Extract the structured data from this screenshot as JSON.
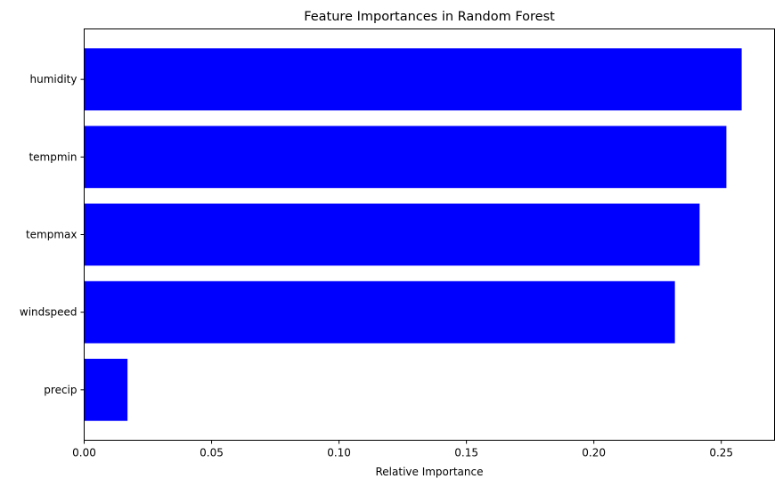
{
  "chart_data": {
    "type": "bar",
    "orientation": "horizontal",
    "title": "Feature Importances in Random Forest",
    "xlabel": "Relative Importance",
    "ylabel": "",
    "categories": [
      "humidity",
      "tempmin",
      "tempmax",
      "windspeed",
      "precip"
    ],
    "values": [
      0.258,
      0.252,
      0.2415,
      0.2318,
      0.017
    ],
    "xlim": [
      0,
      0.2709
    ],
    "xticks": [
      "0.00",
      "0.05",
      "0.10",
      "0.15",
      "0.20",
      "0.25"
    ],
    "xtick_values": [
      0,
      0.05,
      0.1,
      0.15,
      0.2,
      0.25
    ],
    "bar_color": "#0000ff",
    "grid": false,
    "legend": "none"
  }
}
